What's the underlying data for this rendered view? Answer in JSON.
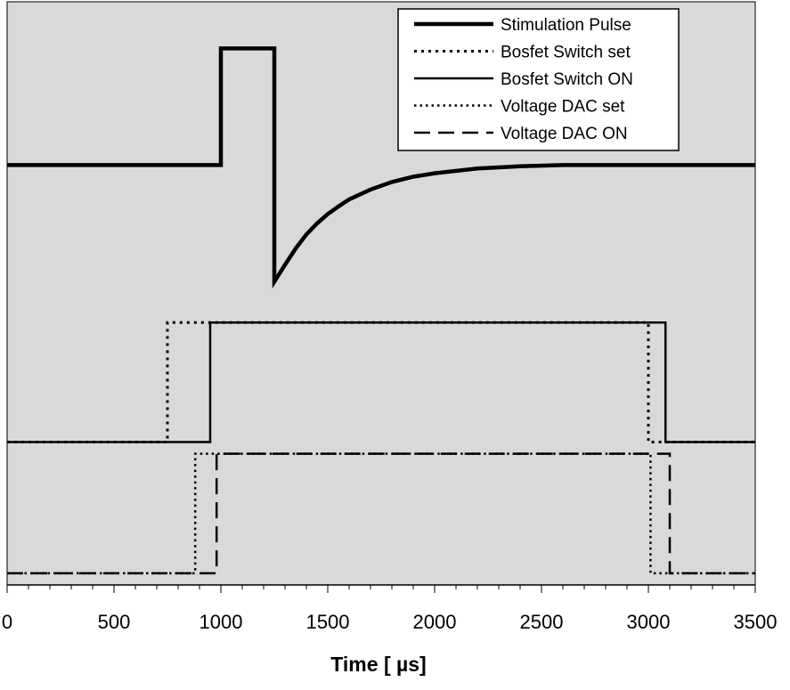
{
  "chart_data": {
    "type": "line",
    "title": "",
    "xlabel": "Time [ µs]",
    "ylabel": "",
    "xlim": [
      0,
      3500
    ],
    "ylim": [
      0,
      10
    ],
    "x_ticks": [
      0,
      500,
      1000,
      1500,
      2000,
      2500,
      3000,
      3500
    ],
    "x_tick_labels": [
      "0",
      "500",
      "1000",
      "1500",
      "2000",
      "2500",
      "3000",
      "3500"
    ],
    "grid": false,
    "background_color": "#d9d9d9",
    "line_color": "#000000",
    "legend": {
      "placement": "top-right",
      "entries": [
        {
          "label": "Stimulation Pulse",
          "style": "thick-solid"
        },
        {
          "label": "Bosfet Switch set",
          "style": "dotted"
        },
        {
          "label": "Bosfet Switch ON",
          "style": "solid"
        },
        {
          "label": "Voltage DAC set",
          "style": "fine-dotted"
        },
        {
          "label": "Voltage DAC ON",
          "style": "dashed"
        }
      ]
    },
    "series": [
      {
        "name": "Stimulation Pulse",
        "style": "thick-solid",
        "points": [
          [
            0,
            7.2
          ],
          [
            1000,
            7.2
          ],
          [
            1000,
            9.2
          ],
          [
            1250,
            9.2
          ],
          [
            1250,
            5.2
          ],
          [
            1300,
            5.49
          ],
          [
            1350,
            5.77
          ],
          [
            1400,
            6.01
          ],
          [
            1450,
            6.2
          ],
          [
            1500,
            6.36
          ],
          [
            1550,
            6.49
          ],
          [
            1600,
            6.61
          ],
          [
            1700,
            6.78
          ],
          [
            1800,
            6.91
          ],
          [
            1900,
            7.0
          ],
          [
            2000,
            7.06
          ],
          [
            2200,
            7.14
          ],
          [
            2400,
            7.18
          ],
          [
            2600,
            7.2
          ],
          [
            2800,
            7.2
          ],
          [
            3500,
            7.2
          ]
        ]
      },
      {
        "name": "Bosfet Switch set",
        "style": "dotted",
        "points": [
          [
            0,
            2.45
          ],
          [
            750,
            2.45
          ],
          [
            750,
            4.5
          ],
          [
            3000,
            4.5
          ],
          [
            3000,
            2.45
          ],
          [
            3500,
            2.45
          ]
        ]
      },
      {
        "name": "Bosfet Switch ON",
        "style": "solid",
        "points": [
          [
            0,
            2.45
          ],
          [
            950,
            2.45
          ],
          [
            950,
            4.5
          ],
          [
            3080,
            4.5
          ],
          [
            3080,
            2.45
          ],
          [
            3500,
            2.45
          ]
        ]
      },
      {
        "name": "Voltage DAC set",
        "style": "fine-dotted",
        "points": [
          [
            0,
            0.2
          ],
          [
            880,
            0.2
          ],
          [
            880,
            2.25
          ],
          [
            3010,
            2.25
          ],
          [
            3010,
            0.2
          ],
          [
            3500,
            0.2
          ]
        ]
      },
      {
        "name": "Voltage DAC ON",
        "style": "dashed",
        "points": [
          [
            0,
            0.2
          ],
          [
            980,
            0.2
          ],
          [
            980,
            2.25
          ],
          [
            3100,
            2.25
          ],
          [
            3100,
            0.2
          ],
          [
            3500,
            0.2
          ]
        ]
      }
    ]
  }
}
